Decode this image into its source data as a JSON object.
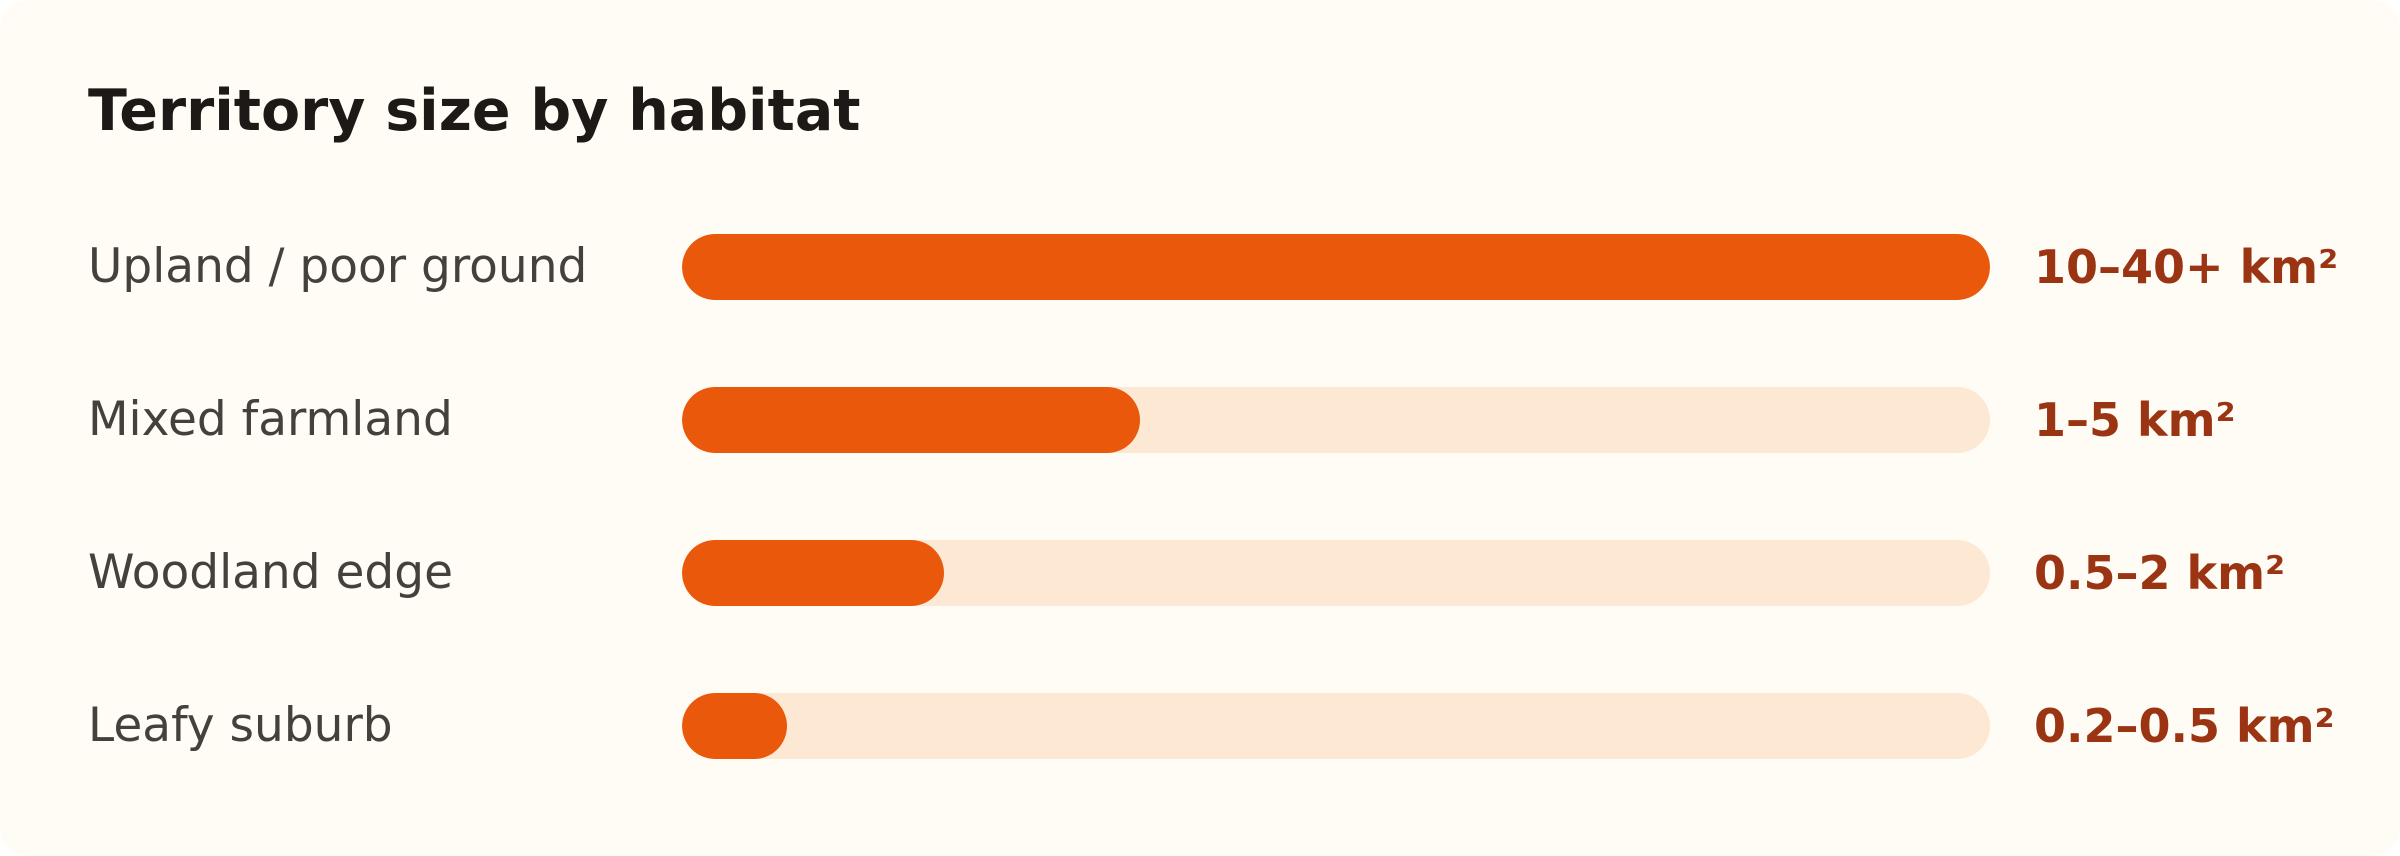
{
  "colors": {
    "card_background": "#fffbf5",
    "bar_fill": "#ea580c",
    "bar_track": "#fde8d4",
    "value_text": "#9a3412",
    "title_text": "#1c1917",
    "label_text": "#44403c"
  },
  "chart_data": {
    "type": "bar",
    "orientation": "horizontal",
    "title": "Territory size by habitat",
    "xlabel": "",
    "ylabel": "",
    "grid": false,
    "unit": "km²",
    "categories": [
      "Upland / poor ground",
      "Mixed farmland",
      "Woodland edge",
      "Leafy suburb"
    ],
    "value_labels": [
      "10–40+ km²",
      "1–5 km²",
      "0.5–2 km²",
      "0.2–0.5 km²"
    ],
    "values": [
      1.0,
      0.35,
      0.2,
      0.08
    ],
    "value_scale": "relative fraction of the largest territory (bar fill)"
  }
}
